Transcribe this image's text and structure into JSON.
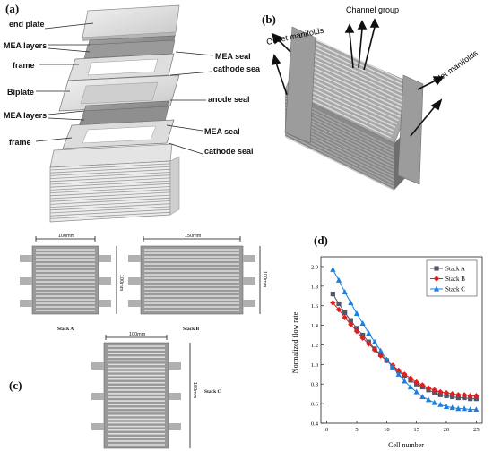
{
  "panel_a": {
    "label": "(a)",
    "components": [
      "end plate",
      "MEA layers",
      "frame",
      "MEA seal",
      "cathode seal",
      "Biplate",
      "anode seal",
      "MEA layers",
      "MEA seal",
      "frame",
      "cathode seal"
    ]
  },
  "panel_b": {
    "label": "(b)",
    "channel_group": "Channel group",
    "outlet": "Outlet manifolds",
    "inlet": "Inlet manifolds"
  },
  "panel_c": {
    "label": "(c)",
    "stack_a": {
      "name": "Stack A",
      "width": "100mm",
      "height": "100mm"
    },
    "stack_b": {
      "name": "Stack B",
      "width": "150mm",
      "height": "100mm"
    },
    "stack_c": {
      "name": "Stack C",
      "width": "100mm",
      "height": "150mm"
    }
  },
  "panel_d": {
    "label": "(d)"
  },
  "chart_data": {
    "type": "line",
    "title": "",
    "xlabel": "Cell number",
    "ylabel": "Normalized flow rate",
    "xlim": [
      -1,
      26
    ],
    "ylim": [
      0.4,
      2.1
    ],
    "xticks": [
      0,
      5,
      10,
      15,
      20,
      25
    ],
    "yticks": [
      0.4,
      0.6,
      0.8,
      1.0,
      1.2,
      1.4,
      1.6,
      1.8,
      2.0
    ],
    "legend_position": "top-right",
    "x": [
      1,
      2,
      3,
      4,
      5,
      6,
      7,
      8,
      9,
      10,
      11,
      12,
      13,
      14,
      15,
      16,
      17,
      18,
      19,
      20,
      21,
      22,
      23,
      24,
      25
    ],
    "series": [
      {
        "name": "Stack A",
        "color": "#555566",
        "marker": "square",
        "values": [
          1.72,
          1.62,
          1.53,
          1.45,
          1.37,
          1.3,
          1.23,
          1.16,
          1.1,
          1.04,
          0.98,
          0.93,
          0.88,
          0.84,
          0.8,
          0.77,
          0.74,
          0.71,
          0.69,
          0.68,
          0.67,
          0.66,
          0.66,
          0.65,
          0.65
        ]
      },
      {
        "name": "Stack B",
        "color": "#e02020",
        "marker": "diamond",
        "values": [
          1.63,
          1.56,
          1.48,
          1.41,
          1.34,
          1.27,
          1.21,
          1.15,
          1.09,
          1.04,
          0.99,
          0.94,
          0.9,
          0.86,
          0.82,
          0.79,
          0.76,
          0.74,
          0.72,
          0.71,
          0.7,
          0.69,
          0.69,
          0.68,
          0.68
        ]
      },
      {
        "name": "Stack C",
        "color": "#1a7fe0",
        "marker": "triangle",
        "values": [
          1.97,
          1.86,
          1.74,
          1.63,
          1.52,
          1.42,
          1.32,
          1.23,
          1.14,
          1.05,
          0.97,
          0.9,
          0.83,
          0.77,
          0.72,
          0.67,
          0.64,
          0.61,
          0.59,
          0.57,
          0.56,
          0.55,
          0.55,
          0.54,
          0.54
        ]
      }
    ]
  }
}
